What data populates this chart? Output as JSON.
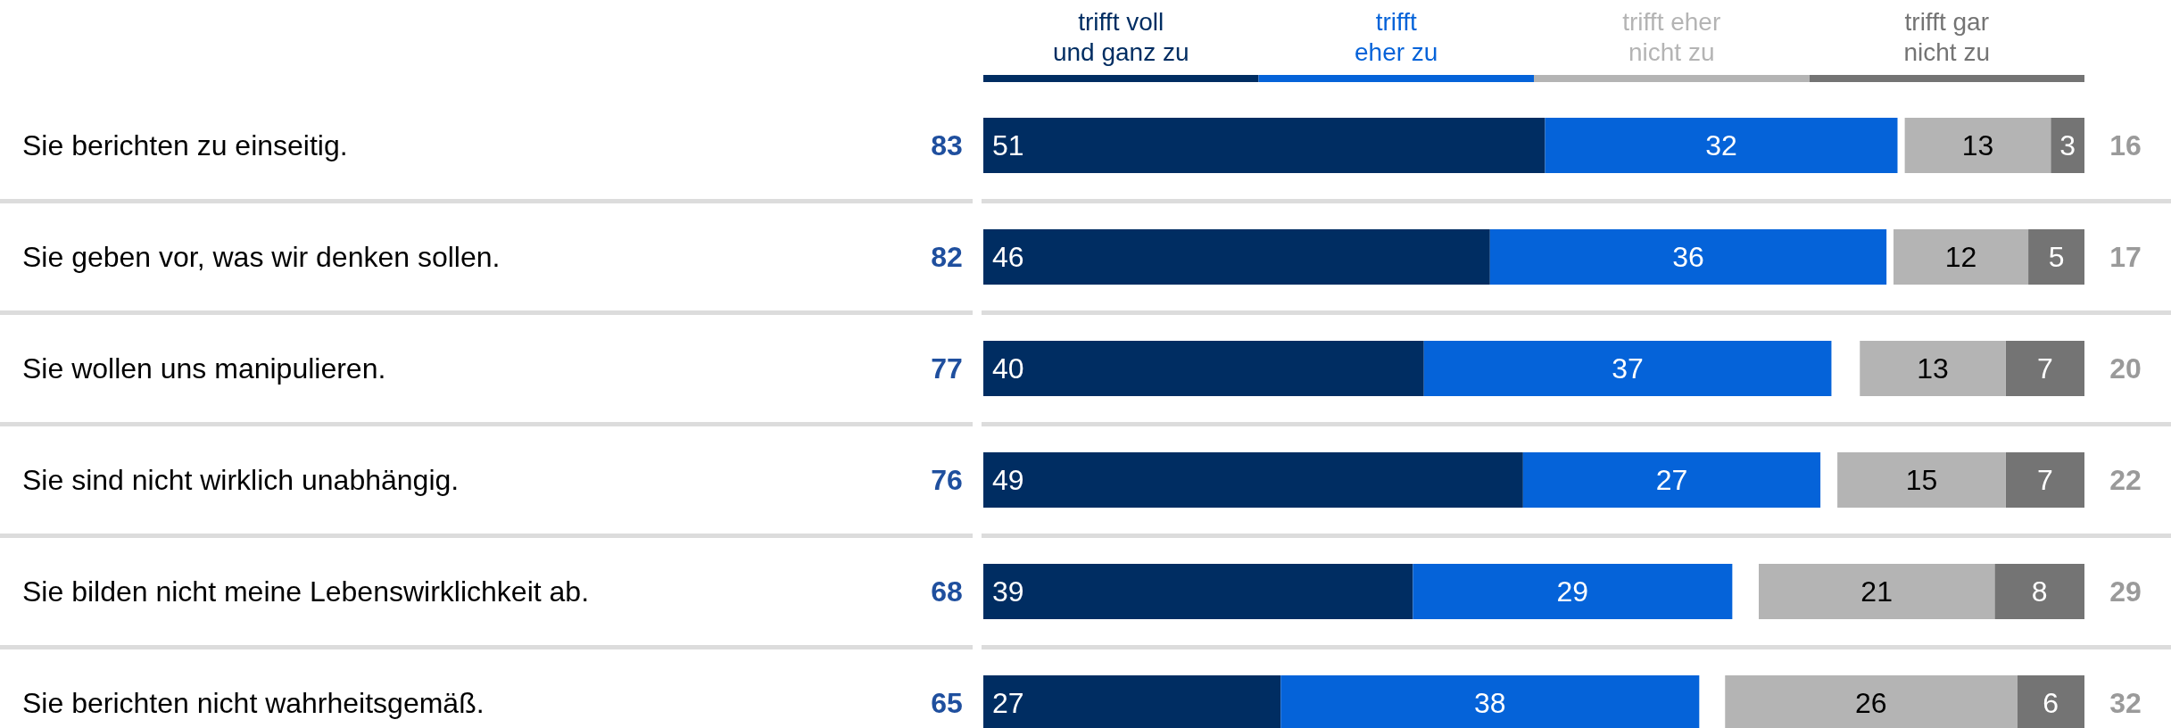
{
  "chart_data": [
    {
      "type": "bar",
      "orientation": "horizontal",
      "stacked": true,
      "categories": [
        "Sie berichten zu einseitig.",
        "Sie geben vor, was wir denken sollen.",
        "Sie wollen uns manipulieren.",
        "Sie sind nicht wirklich unabhängig.",
        "Sie bilden nicht meine Lebenswirklichkeit ab.",
        "Sie berichten nicht wahrheitsgemäß."
      ],
      "series": [
        {
          "name": "trifft voll und ganz zu",
          "color": "#002d62",
          "values": [
            51,
            46,
            40,
            49,
            39,
            27
          ]
        },
        {
          "name": "trifft eher zu",
          "color": "#0563d9",
          "values": [
            32,
            36,
            37,
            27,
            29,
            38
          ]
        }
      ],
      "data_labels": true,
      "legend": "top",
      "totals": [
        "83",
        "82",
        "77",
        "76",
        "68",
        "65"
      ]
    },
    {
      "type": "bar",
      "orientation": "horizontal",
      "stacked": true,
      "categories": [
        null,
        null,
        null,
        null,
        null,
        null
      ],
      "series": [
        {
          "name": "trifft gar nicht zu",
          "color": "#747474",
          "values": [
            3,
            5,
            7,
            7,
            8,
            6
          ]
        },
        {
          "name": "trifft eher nicht zu",
          "color": "#b4b4b4",
          "values": [
            13,
            12,
            13,
            15,
            21,
            26
          ]
        }
      ],
      "data_labels": true,
      "legend": "top",
      "totals": [
        "16",
        "17",
        "20",
        "22",
        "29",
        "32"
      ]
    }
  ]
}
